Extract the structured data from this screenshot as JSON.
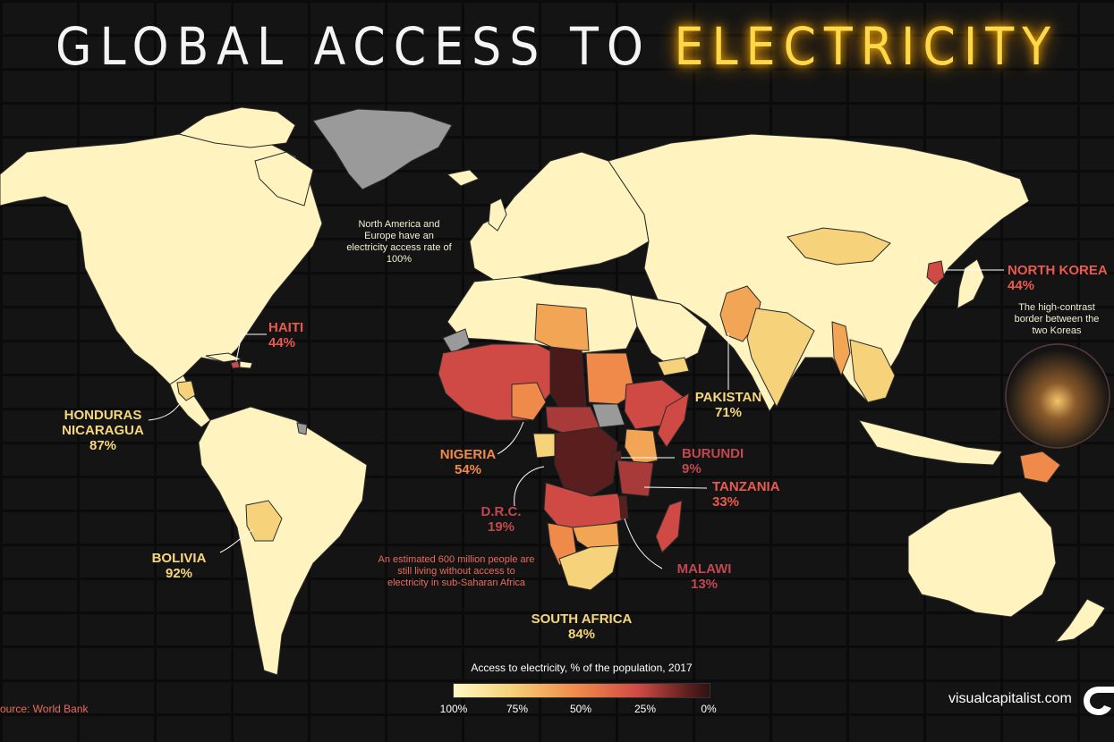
{
  "title": {
    "part1": "GLOBAL ACCESS TO",
    "part2": "ELECTRICITY"
  },
  "notes": {
    "north_america_europe": "North America and Europe have an electricity access rate of 100%",
    "korea_border": "The high-contrast border between the two Koreas",
    "sub_saharan": "An estimated 600 million people are still living without access to electricity in sub-Saharan Africa"
  },
  "callouts": {
    "north_korea": {
      "name": "NORTH KOREA",
      "value": "44%"
    },
    "haiti": {
      "name": "HAITI",
      "value": "44%"
    },
    "honduras_nicaragua": {
      "name": "HONDURAS NICARAGUA",
      "value": "87%"
    },
    "bolivia": {
      "name": "BOLIVIA",
      "value": "92%"
    },
    "pakistan": {
      "name": "PAKISTAN",
      "value": "71%"
    },
    "nigeria": {
      "name": "NIGERIA",
      "value": "54%"
    },
    "burundi": {
      "name": "BURUNDI",
      "value": "9%"
    },
    "tanzania": {
      "name": "TANZANIA",
      "value": "33%"
    },
    "drc": {
      "name": "D.R.C.",
      "value": "19%"
    },
    "malawi": {
      "name": "MALAWI",
      "value": "13%"
    },
    "south_africa": {
      "name": "SOUTH AFRICA",
      "value": "84%"
    }
  },
  "legend": {
    "title": "Access to electricity, % of the population, 2017",
    "ticks": [
      "100%",
      "75%",
      "50%",
      "25%",
      "0%"
    ]
  },
  "source": "ource: World Bank",
  "brand": "visualcapitalist.com",
  "colors": {
    "full_access": "#fff3bf",
    "high": "#f6d27a",
    "mid": "#f08a4a",
    "low": "#cf4a44",
    "very_low": "#5a1e1e",
    "no_data": "#9a9a9a",
    "title_glow": "#ffd84a"
  }
}
